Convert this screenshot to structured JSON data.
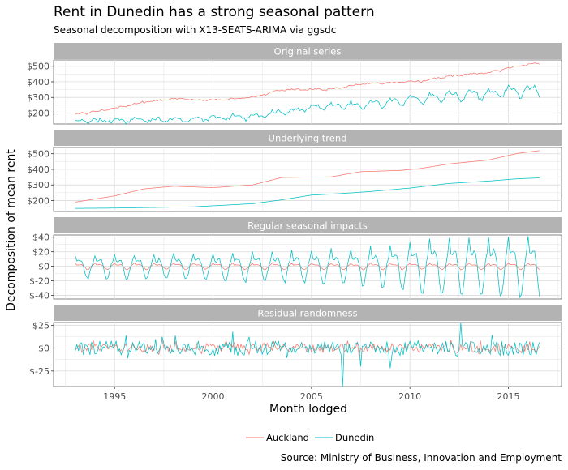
{
  "chart_data": {
    "type": "line",
    "title": "Rent in Dunedin has a strong seasonal pattern",
    "subtitle": "Seasonal decomposition with X13-SEATS-ARIMA via ggsdc",
    "xlabel": "Month lodged",
    "ylabel": "Decomposition of mean rent",
    "caption": "Source: Ministry of Business, Innovation and Employment",
    "x_range": [
      1993.0,
      2016.6
    ],
    "xlim": [
      1991.9,
      2017.7
    ],
    "x_ticks": [
      1995,
      2000,
      2005,
      2010,
      2015
    ],
    "grid": true,
    "legend_position": "bottom",
    "colors": {
      "Auckland": "#F8766D",
      "Dunedin": "#00BFC4",
      "strip": "#B3B3B3",
      "grid": "#E0E0E0"
    },
    "series_names": [
      "Auckland",
      "Dunedin"
    ],
    "panels": [
      {
        "name": "Original series",
        "ylim": [
          130,
          540
        ],
        "y_ticks": [
          {
            "value": 200,
            "label": "$200"
          },
          {
            "value": 300,
            "label": "$300"
          },
          {
            "value": 400,
            "label": "$400"
          },
          {
            "value": 500,
            "label": "$500"
          }
        ],
        "series": {
          "Auckland": {
            "knots": [
              [
                1993.0,
                190
              ],
              [
                1995.0,
                230
              ],
              [
                1996.5,
                270
              ],
              [
                1998.0,
                290
              ],
              [
                2000.0,
                283
              ],
              [
                2002.0,
                300
              ],
              [
                2003.5,
                350
              ],
              [
                2006.0,
                352
              ],
              [
                2007.5,
                385
              ],
              [
                2009.5,
                395
              ],
              [
                2010.5,
                405
              ],
              [
                2012.0,
                435
              ],
              [
                2014.0,
                460
              ],
              [
                2015.5,
                500
              ],
              [
                2016.6,
                520
              ]
            ],
            "season_amp": 3,
            "noise_amp": 5
          },
          "Dunedin": {
            "knots": [
              [
                1993.0,
                150
              ],
              [
                1995.0,
                152
              ],
              [
                1997.0,
                156
              ],
              [
                1999.0,
                160
              ],
              [
                2000.5,
                170
              ],
              [
                2002.0,
                180
              ],
              [
                2003.5,
                205
              ],
              [
                2005.0,
                235
              ],
              [
                2006.5,
                245
              ],
              [
                2008.0,
                258
              ],
              [
                2010.0,
                280
              ],
              [
                2012.0,
                310
              ],
              [
                2014.0,
                325
              ],
              [
                2015.5,
                340
              ],
              [
                2016.6,
                345
              ]
            ],
            "season_amp": [
              [
                1993.0,
                10
              ],
              [
                2005.0,
                16
              ],
              [
                2010.0,
                28
              ],
              [
                2016.6,
                38
              ]
            ],
            "noise_amp": 10
          }
        }
      },
      {
        "name": "Underlying trend",
        "ylim": [
          130,
          540
        ],
        "y_ticks": [
          {
            "value": 200,
            "label": "$200"
          },
          {
            "value": 300,
            "label": "$300"
          },
          {
            "value": 400,
            "label": "$400"
          },
          {
            "value": 500,
            "label": "$500"
          }
        ],
        "series": {
          "Auckland": {
            "knots": [
              [
                1993.0,
                190
              ],
              [
                1995.0,
                230
              ],
              [
                1996.5,
                275
              ],
              [
                1998.0,
                292
              ],
              [
                2000.0,
                283
              ],
              [
                2002.0,
                300
              ],
              [
                2003.5,
                348
              ],
              [
                2006.0,
                352
              ],
              [
                2007.5,
                385
              ],
              [
                2009.5,
                393
              ],
              [
                2010.5,
                405
              ],
              [
                2012.0,
                435
              ],
              [
                2014.0,
                460
              ],
              [
                2015.5,
                503
              ],
              [
                2016.6,
                520
              ]
            ],
            "season_amp": 0,
            "noise_amp": 0
          },
          "Dunedin": {
            "knots": [
              [
                1993.0,
                150
              ],
              [
                1995.0,
                152
              ],
              [
                1997.0,
                156
              ],
              [
                1999.0,
                160
              ],
              [
                2000.5,
                170
              ],
              [
                2002.0,
                180
              ],
              [
                2003.5,
                205
              ],
              [
                2005.0,
                235
              ],
              [
                2006.5,
                245
              ],
              [
                2008.0,
                258
              ],
              [
                2010.0,
                280
              ],
              [
                2012.0,
                310
              ],
              [
                2014.0,
                325
              ],
              [
                2015.5,
                340
              ],
              [
                2016.6,
                345
              ]
            ],
            "season_amp": 0,
            "noise_amp": 0
          }
        }
      },
      {
        "name": "Regular seasonal impacts",
        "ylim": [
          -45,
          43
        ],
        "y_ticks": [
          {
            "value": -40,
            "label": "$-40"
          },
          {
            "value": -20,
            "label": "$-20"
          },
          {
            "value": 0,
            "label": "$0"
          },
          {
            "value": 20,
            "label": "$20"
          },
          {
            "value": 40,
            "label": "$40"
          }
        ],
        "series": {
          "Auckland": {
            "knots": [
              [
                1993.0,
                0
              ],
              [
                2016.6,
                0
              ]
            ],
            "season_amp": 4,
            "noise_amp": 0.5
          },
          "Dunedin": {
            "knots": [
              [
                1993.0,
                0
              ],
              [
                2016.6,
                0
              ]
            ],
            "season_amp": [
              [
                1993.0,
                14
              ],
              [
                2000.0,
                17
              ],
              [
                2005.0,
                20
              ],
              [
                2009.0,
                26
              ],
              [
                2010.5,
                35
              ],
              [
                2016.6,
                38
              ]
            ],
            "noise_amp": 2
          }
        }
      },
      {
        "name": "Residual randomness",
        "ylim": [
          -42,
          28
        ],
        "y_ticks": [
          {
            "value": -25,
            "label": "$-25"
          },
          {
            "value": 0,
            "label": "$0"
          },
          {
            "value": 25,
            "label": "$25"
          }
        ],
        "series": {
          "Auckland": {
            "knots": [
              [
                1993.0,
                0
              ],
              [
                2016.6,
                0
              ]
            ],
            "season_amp": 0,
            "noise_amp": 5
          },
          "Dunedin": {
            "knots": [
              [
                1993.0,
                0
              ],
              [
                2016.6,
                0
              ]
            ],
            "season_amp": 0,
            "noise_amp": 8,
            "spikes": [
              [
                2006.6,
                -42
              ],
              [
                2012.6,
                28
              ],
              [
                2009.0,
                -22
              ],
              [
                2001.0,
                18
              ],
              [
                2007.5,
                -20
              ]
            ]
          }
        }
      }
    ]
  }
}
